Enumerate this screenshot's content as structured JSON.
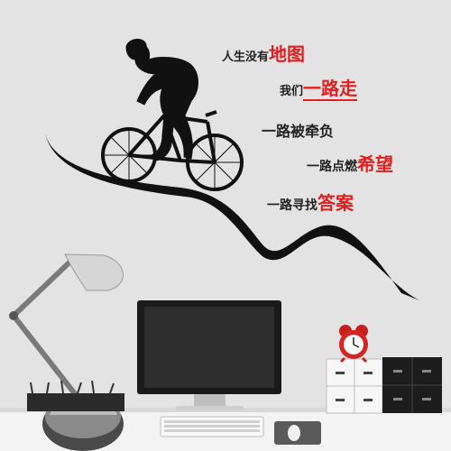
{
  "slogan": {
    "line1": {
      "plain": "人生没有",
      "accent": "地图"
    },
    "line2": {
      "plain": "我们",
      "accent": "一路走"
    },
    "line3": {
      "plain": "一路被牵负"
    },
    "line4": {
      "plain": "一路点燃",
      "accent": "希望"
    },
    "line5": {
      "plain": "一路寻找",
      "accent": "答案"
    }
  },
  "colors": {
    "accent_red": "#e02020",
    "decal_black": "#111111",
    "wall": "#e2e2e2",
    "desk": "#f2f2f2"
  },
  "icons": [
    "cyclist-silhouette",
    "desk-lamp",
    "monitor",
    "alarm-clock",
    "keyboard",
    "mouse",
    "pen-holder",
    "drawer-units"
  ]
}
